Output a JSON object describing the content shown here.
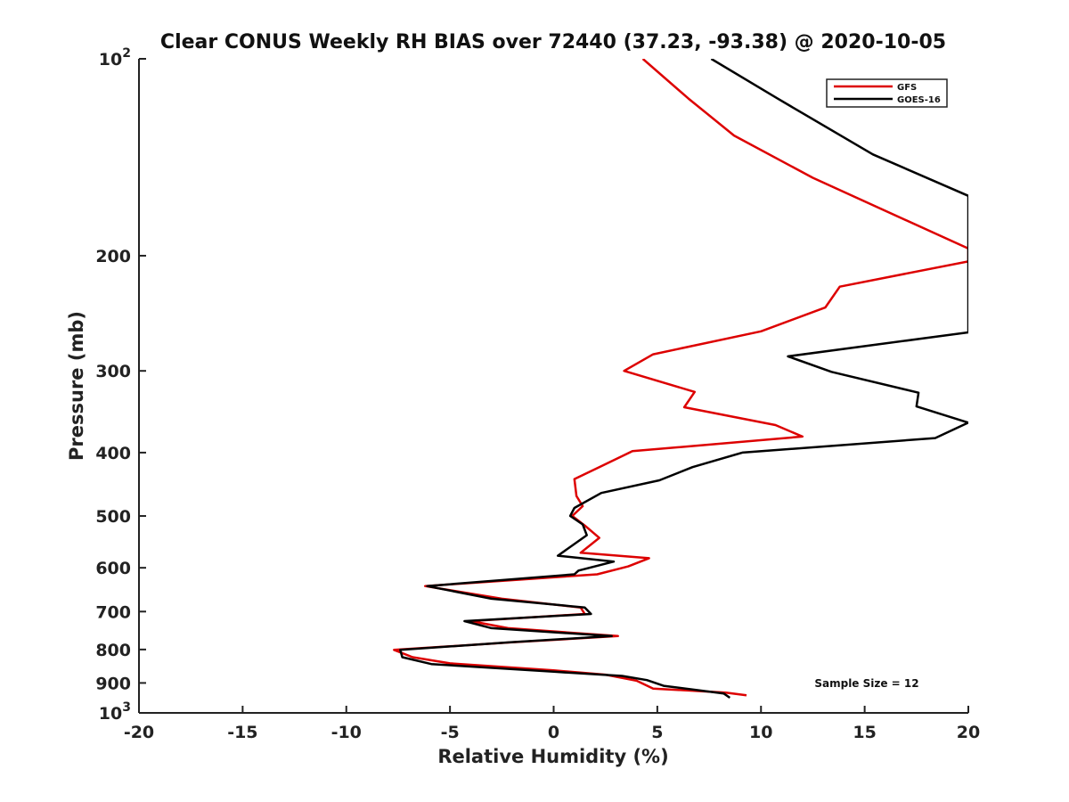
{
  "chart_data": {
    "type": "line",
    "title": "Clear CONUS Weekly RH BIAS over 72440 (37.23, -93.38) @ 2020-10-05",
    "xlabel": "Relative Humidity (%)",
    "ylabel": "Pressure (mb)",
    "xlim": [
      -20,
      20
    ],
    "ylim": [
      100,
      1000
    ],
    "y_scale": "log",
    "y_reversed": true,
    "x_ticks": [
      "-20",
      "-15",
      "-10",
      "-5",
      "0",
      "5",
      "10",
      "15",
      "20"
    ],
    "y_ticks": [
      {
        "value": 100,
        "base": "10",
        "exp": "2"
      },
      {
        "value": 200,
        "label": "200"
      },
      {
        "value": 300,
        "label": "300"
      },
      {
        "value": 400,
        "label": "400"
      },
      {
        "value": 500,
        "label": "500"
      },
      {
        "value": 600,
        "label": "600"
      },
      {
        "value": 700,
        "label": "700"
      },
      {
        "value": 800,
        "label": "800"
      },
      {
        "value": 900,
        "label": "900"
      },
      {
        "value": 1000,
        "base": "10",
        "exp": "3"
      }
    ],
    "grid": false,
    "legend_position": "top-right",
    "series": [
      {
        "name": "GFS",
        "color": "#dd0000",
        "points": [
          [
            4.3,
            100
          ],
          [
            6.5,
            115
          ],
          [
            8.7,
            131
          ],
          [
            12.5,
            152
          ],
          [
            20.0,
            195
          ],
          [
            20.0,
            204
          ],
          [
            13.8,
            223
          ],
          [
            13.1,
            240
          ],
          [
            10.0,
            261
          ],
          [
            4.8,
            283
          ],
          [
            3.4,
            300
          ],
          [
            6.8,
            323
          ],
          [
            6.3,
            341
          ],
          [
            10.7,
            363
          ],
          [
            12.0,
            378
          ],
          [
            3.8,
            398
          ],
          [
            2.2,
            421
          ],
          [
            1.0,
            439
          ],
          [
            1.1,
            466
          ],
          [
            1.4,
            483
          ],
          [
            0.9,
            500
          ],
          [
            1.5,
            517
          ],
          [
            2.2,
            540
          ],
          [
            1.3,
            569
          ],
          [
            4.6,
            580
          ],
          [
            3.6,
            597
          ],
          [
            2.1,
            614
          ],
          [
            -6.2,
            640
          ],
          [
            -2.5,
            669
          ],
          [
            1.3,
            690
          ],
          [
            1.5,
            706
          ],
          [
            -4.0,
            724
          ],
          [
            -2.2,
            742
          ],
          [
            3.1,
            763
          ],
          [
            -2.0,
            780
          ],
          [
            -7.7,
            801
          ],
          [
            -6.8,
            822
          ],
          [
            -5.0,
            840
          ],
          [
            0.0,
            861
          ],
          [
            2.5,
            874
          ],
          [
            4.0,
            893
          ],
          [
            4.8,
            918
          ],
          [
            8.3,
            931
          ],
          [
            9.3,
            940
          ]
        ]
      },
      {
        "name": "GOES-16",
        "color": "#000000",
        "points": [
          [
            7.6,
            100
          ],
          [
            10.8,
            115
          ],
          [
            15.4,
            140
          ],
          [
            20.0,
            162
          ],
          [
            20.0,
            262
          ],
          [
            11.3,
            285
          ],
          [
            13.4,
            301
          ],
          [
            17.6,
            324
          ],
          [
            17.5,
            340
          ],
          [
            20.0,
            360
          ],
          [
            18.4,
            380
          ],
          [
            9.1,
            400
          ],
          [
            6.7,
            421
          ],
          [
            5.1,
            441
          ],
          [
            2.3,
            461
          ],
          [
            1.0,
            486
          ],
          [
            0.8,
            500
          ],
          [
            1.4,
            515
          ],
          [
            1.6,
            535
          ],
          [
            0.2,
            575
          ],
          [
            2.9,
            587
          ],
          [
            1.2,
            606
          ],
          [
            1.0,
            614
          ],
          [
            -6.1,
            640
          ],
          [
            -3.0,
            669
          ],
          [
            1.5,
            690
          ],
          [
            1.8,
            706
          ],
          [
            -4.3,
            724
          ],
          [
            -3.0,
            742
          ],
          [
            2.8,
            763
          ],
          [
            -2.1,
            780
          ],
          [
            -7.4,
            801
          ],
          [
            -7.3,
            822
          ],
          [
            -5.9,
            842
          ],
          [
            0.0,
            865
          ],
          [
            3.3,
            878
          ],
          [
            4.5,
            891
          ],
          [
            5.3,
            909
          ],
          [
            8.2,
            934
          ],
          [
            8.5,
            948
          ]
        ]
      }
    ],
    "annotations": [
      "Sample Size = 12"
    ]
  }
}
